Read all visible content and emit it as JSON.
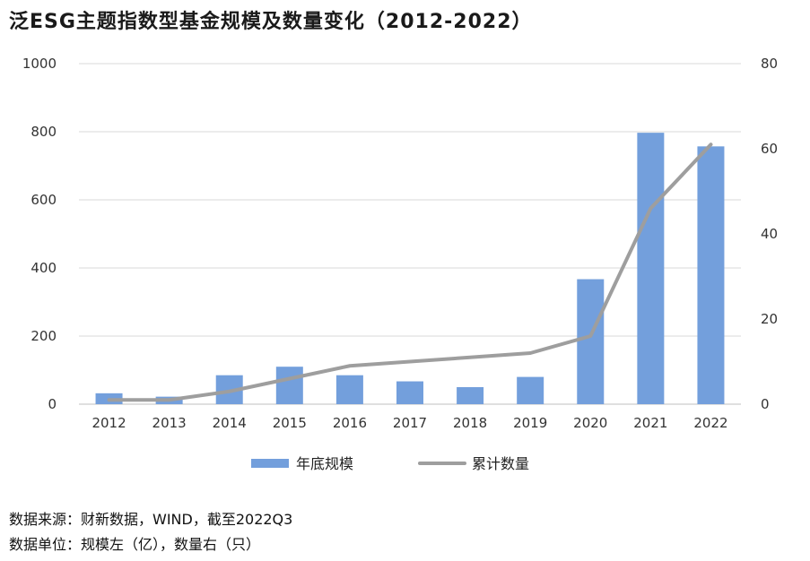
{
  "chart_data": {
    "type": "bar",
    "title": "泛ESG主题指数型基金规模及数量变化（2012-2022）",
    "categories": [
      "2012",
      "2013",
      "2014",
      "2015",
      "2016",
      "2017",
      "2018",
      "2019",
      "2020",
      "2021",
      "2022"
    ],
    "series": [
      {
        "name": "年底规模",
        "type": "bar",
        "axis": "left",
        "values": [
          32,
          22,
          85,
          110,
          85,
          67,
          50,
          80,
          367,
          797,
          757
        ]
      },
      {
        "name": "累计数量",
        "type": "line",
        "axis": "right",
        "values": [
          1,
          1,
          3,
          6,
          9,
          10,
          11,
          12,
          16,
          46,
          61
        ]
      }
    ],
    "ylim_left": [
      0,
      1000
    ],
    "ylim_right": [
      0,
      80
    ],
    "yticks_left": [
      "0",
      "200",
      "400",
      "600",
      "800",
      "1000"
    ],
    "yticks_right": [
      "0",
      "20",
      "40",
      "60",
      "80"
    ],
    "grid": true,
    "legend_position": "bottom",
    "colors": {
      "bar": "#739fdc",
      "line": "#9e9e9e",
      "grid": "#d9d9d9"
    }
  },
  "notes": {
    "source": "数据来源：财新数据，WIND，截至2022Q3",
    "unit": "数据单位：规模左（亿），数量右（只）"
  }
}
